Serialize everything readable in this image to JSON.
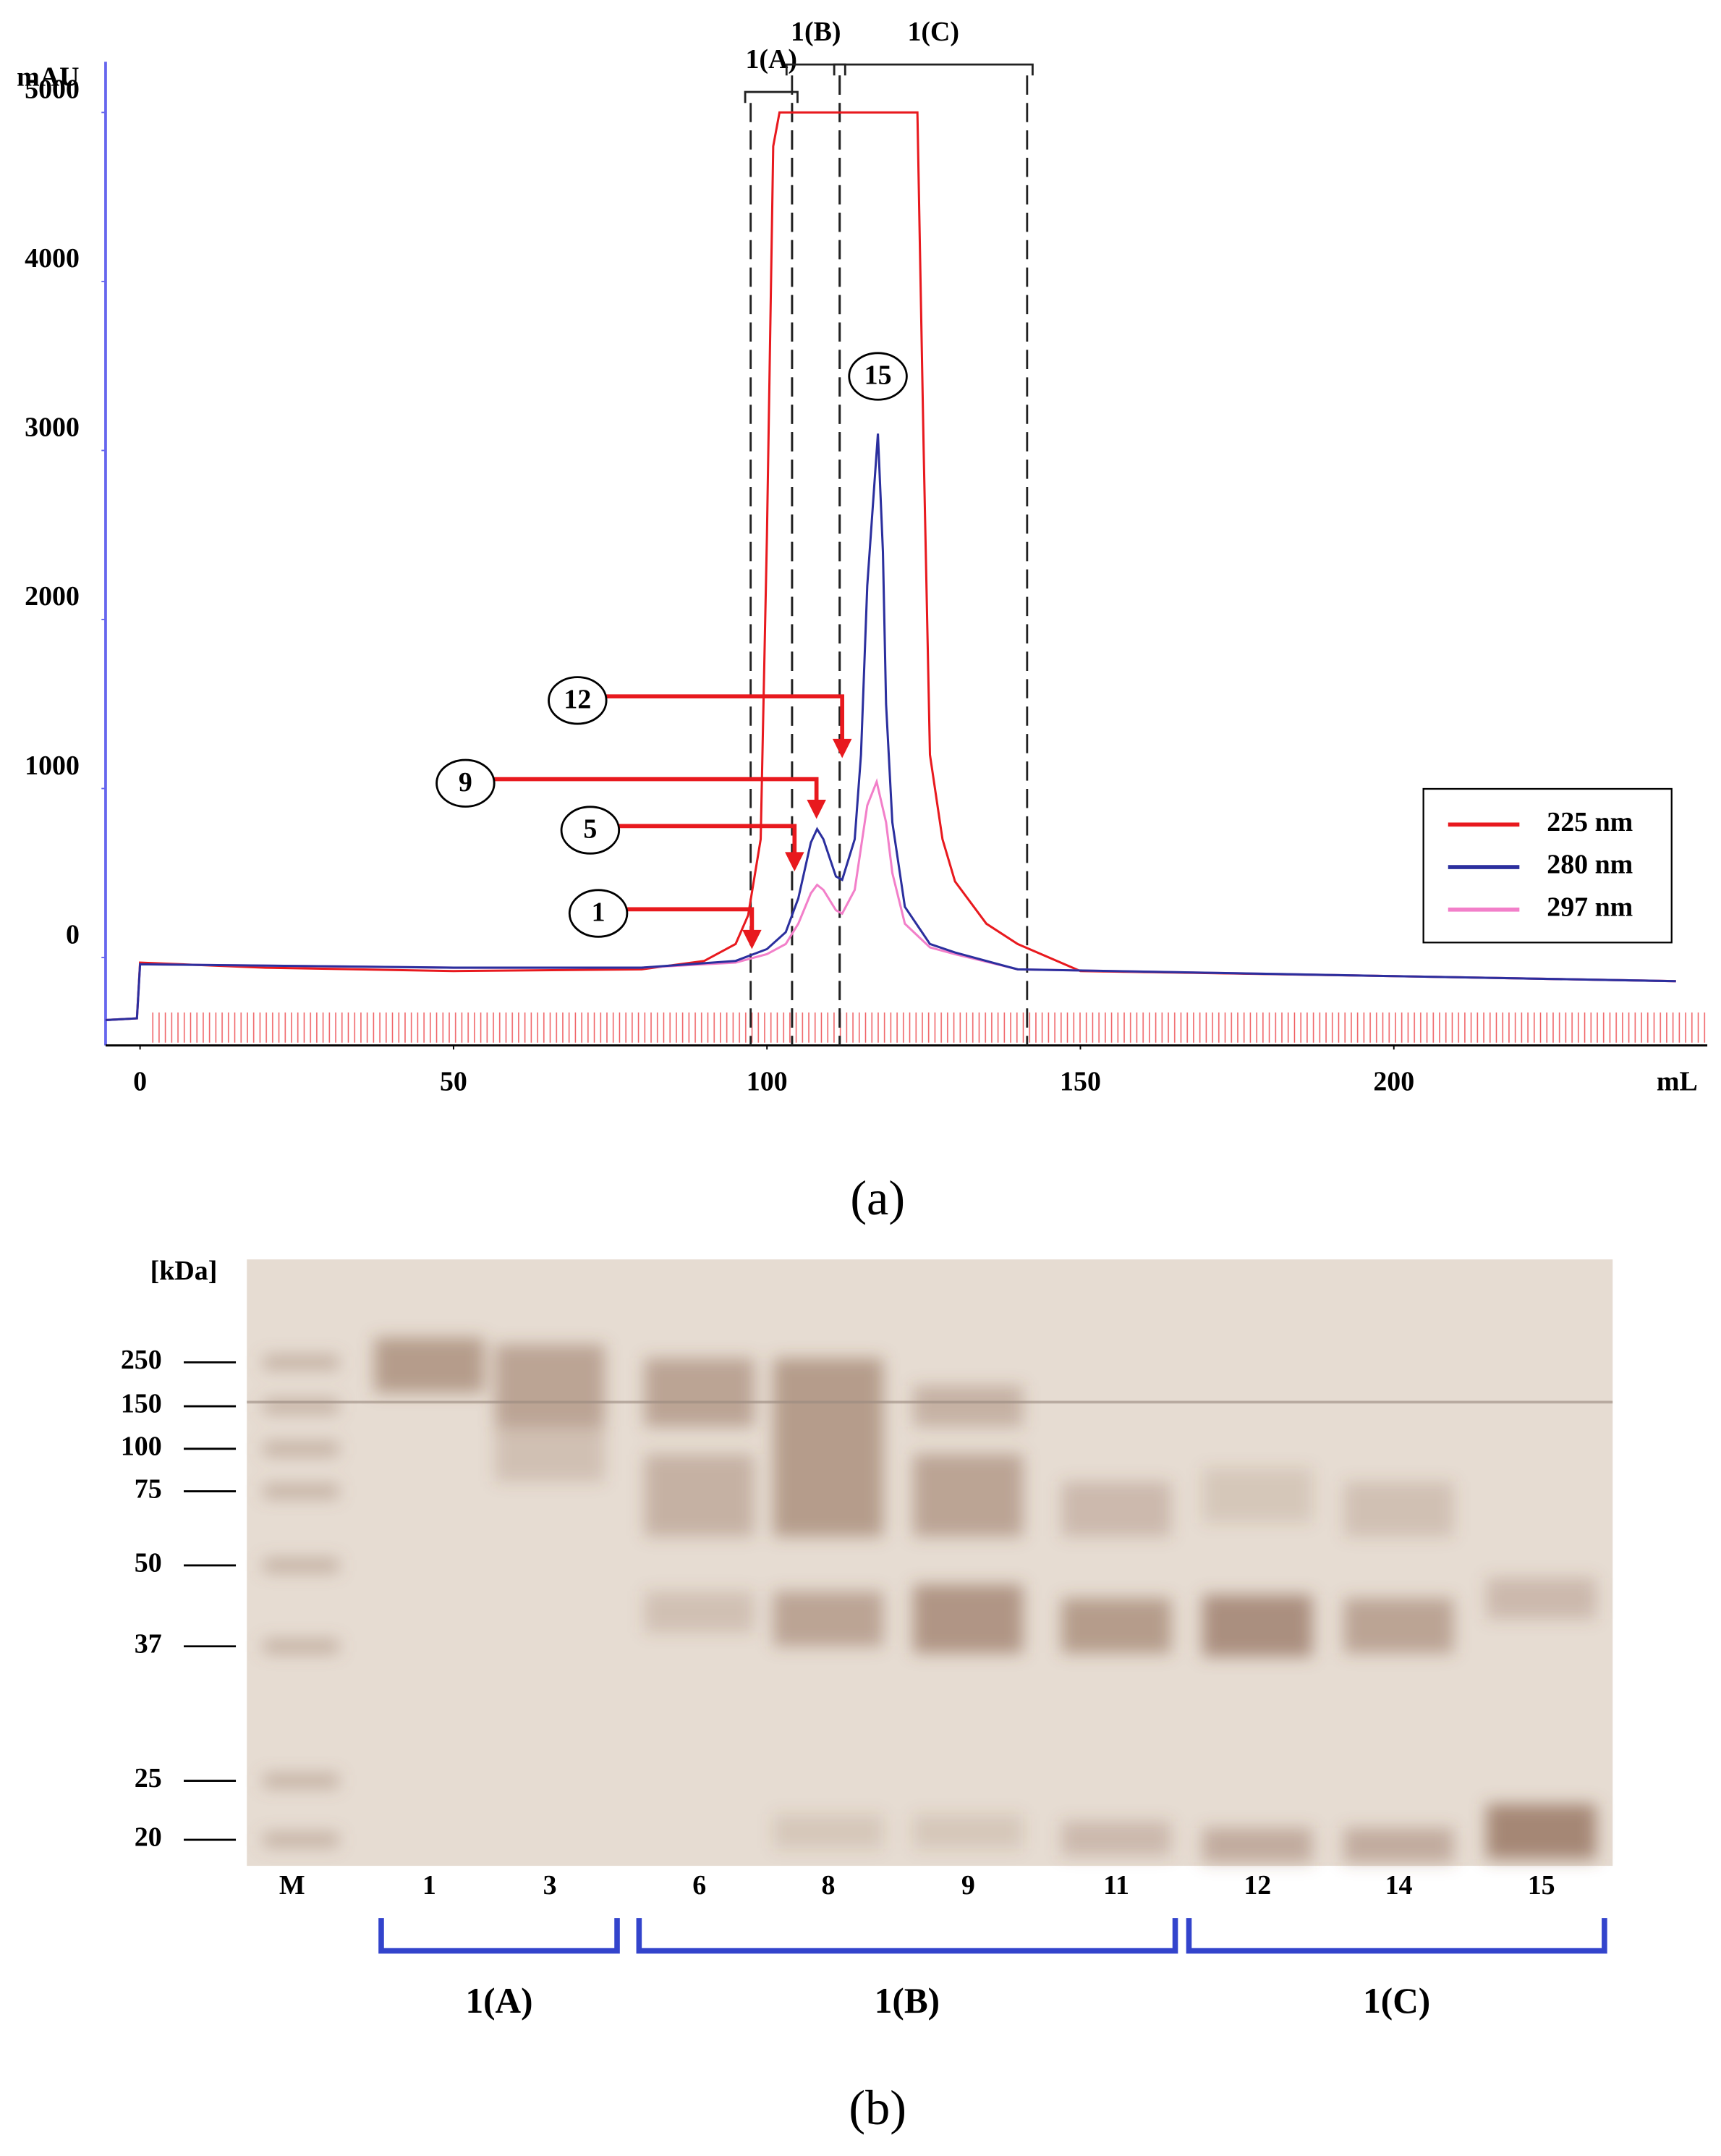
{
  "chart_data": {
    "type": "line",
    "x_label": "mL",
    "y_label": "mAU",
    "xlim": [
      -5.5,
      250
    ],
    "xticks": [
      0,
      50,
      100,
      150,
      200
    ],
    "ylim": [
      -520,
      5300
    ],
    "yticks": [
      0,
      1000,
      2000,
      3000,
      4000,
      5000
    ],
    "series": [
      {
        "name": "225 nm",
        "color": "#e8191e",
        "x": [
          -5.5,
          -0.5,
          0,
          20,
          50,
          80,
          90,
          95,
          97,
          99,
          100,
          101,
          102,
          110,
          120,
          124,
          125,
          126,
          128,
          130,
          135,
          140,
          150,
          200,
          245
        ],
        "values": [
          -370,
          -360,
          -30,
          -60,
          -80,
          -70,
          -20,
          80,
          250,
          700,
          2500,
          4800,
          5000,
          5000,
          5000,
          5000,
          3000,
          1200,
          700,
          450,
          200,
          80,
          -80,
          -110,
          -140
        ]
      },
      {
        "name": "280 nm",
        "color": "#2b2f9e",
        "x": [
          -5.5,
          -0.5,
          0,
          50,
          80,
          95,
          100,
          103,
          105,
          107,
          108,
          109,
          111,
          112,
          114,
          115,
          116,
          117.7,
          118.5,
          119,
          120,
          122,
          126,
          130,
          140,
          200,
          245
        ],
        "values": [
          -370,
          -360,
          -40,
          -60,
          -60,
          -20,
          50,
          150,
          350,
          680,
          760,
          700,
          480,
          460,
          700,
          1200,
          2200,
          3100,
          2400,
          1500,
          800,
          300,
          80,
          30,
          -70,
          -110,
          -140
        ]
      },
      {
        "name": "297 nm",
        "color": "#f27fc9",
        "x": [
          -5.5,
          -0.5,
          0,
          50,
          80,
          95,
          100,
          103,
          105,
          107,
          108,
          109,
          111,
          112,
          114,
          115,
          116,
          117.5,
          119,
          120,
          122,
          126,
          130,
          140,
          200,
          245
        ],
        "values": [
          -370,
          -360,
          -40,
          -60,
          -60,
          -30,
          20,
          80,
          200,
          380,
          430,
          400,
          280,
          260,
          400,
          650,
          900,
          1040,
          800,
          500,
          200,
          60,
          20,
          -70,
          -110,
          -140
        ]
      }
    ],
    "regions": [
      {
        "label": "1(A)",
        "from": 97.4,
        "to": 104
      },
      {
        "label": "1(B)",
        "from": 104,
        "to": 111.6
      },
      {
        "label": "1(C)",
        "from": 111.6,
        "to": 141.5
      }
    ],
    "annotations": [
      {
        "text": "1",
        "x": 97.6,
        "y": 50
      },
      {
        "text": "5",
        "x": 104.4,
        "y": 510
      },
      {
        "text": "9",
        "x": 107.9,
        "y": 820
      },
      {
        "text": "12",
        "x": 112,
        "y": 1180
      },
      {
        "text": "15",
        "x": 117.7,
        "y": 3260
      }
    ],
    "legend": "right",
    "caption": "(a)"
  },
  "gel": {
    "unit": "[kDa]",
    "markers": [
      250,
      150,
      100,
      75,
      50,
      37,
      25,
      20
    ],
    "lanes": [
      "M",
      "1",
      "3",
      "6",
      "8",
      "9",
      "11",
      "12",
      "14",
      "15"
    ],
    "groups": [
      "1(A)",
      "1(B)",
      "1(C)"
    ],
    "caption": "(b)"
  }
}
